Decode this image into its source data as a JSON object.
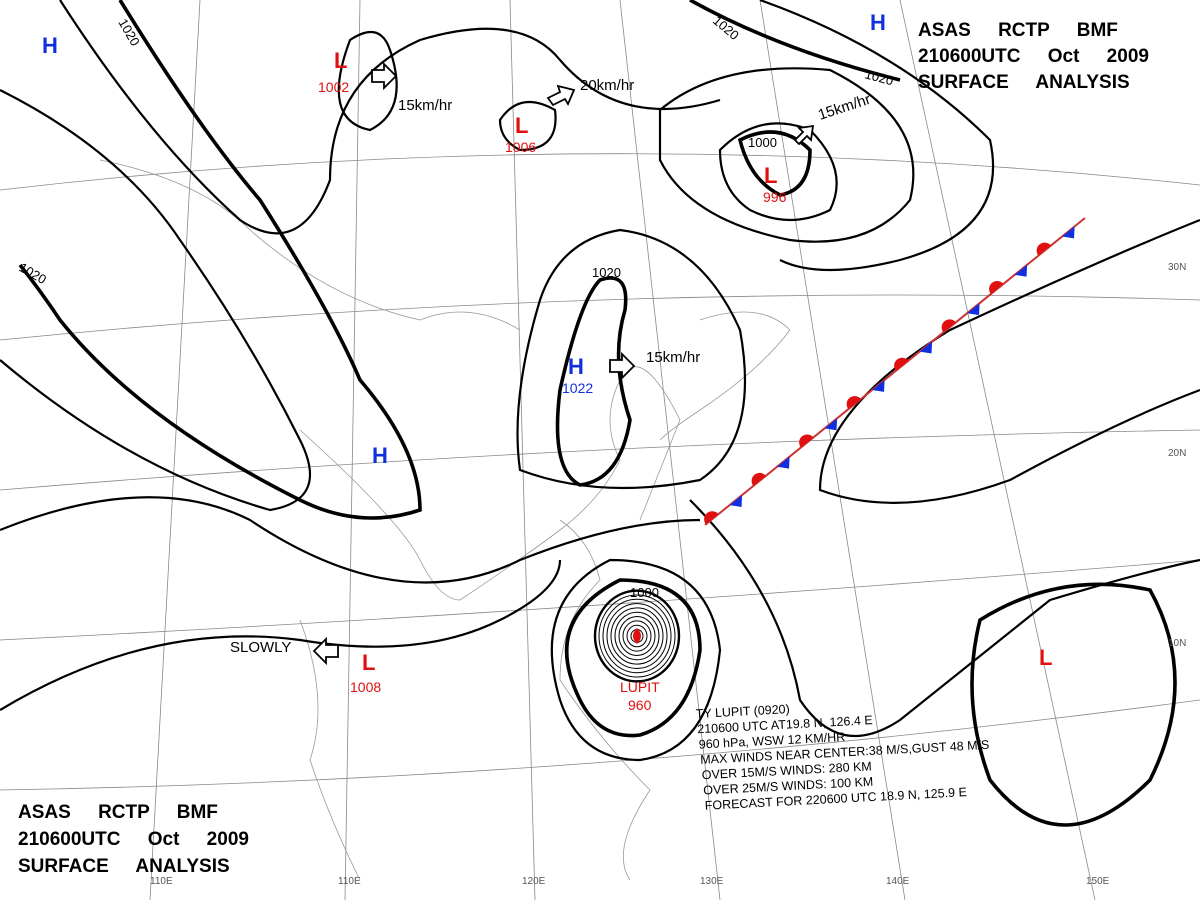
{
  "header_top": {
    "line1": "ASAS RCTP BMF",
    "line2": "210600UTC Oct 2009",
    "line3": "SURFACE ANALYSIS"
  },
  "header_bottom": {
    "line1": "ASAS RCTP BMF",
    "line2": "210600UTC Oct 2009",
    "line3": "SURFACE ANALYSIS"
  },
  "high_centers": [
    "H",
    "H",
    "H",
    "H"
  ],
  "high_pressures": [
    1022
  ],
  "low_centers": [
    "L",
    "L",
    "L",
    "L",
    "L"
  ],
  "low_pressures": [
    1002,
    1006,
    996,
    1008
  ],
  "isobar_labels": [
    1020,
    1020,
    1020,
    1020,
    1020,
    1000,
    1000
  ],
  "motion_labels": [
    "15km/hr",
    "20km/hr",
    "15km/hr",
    "15km/hr",
    "SLOWLY"
  ],
  "typhoon": {
    "name": "LUPIT",
    "pressure": 960,
    "info": [
      "TY LUPIT (0920)",
      "210600 UTC AT19.8 N, 126.4 E",
      "960 hPa, WSW 12 KM/HR",
      "MAX WINDS NEAR CENTER:38 M/S,GUST 48 M/S",
      "OVER 15M/S WINDS: 280 KM",
      "OVER 25M/S WINDS: 100 KM",
      "FORECAST FOR 220600 UTC 18.9 N, 125.9 E"
    ]
  },
  "longitude_labels": [
    "110E",
    "120E",
    "130E",
    "140E",
    "150E"
  ],
  "latitude_labels": [
    "30N",
    "20N",
    "10N"
  ]
}
